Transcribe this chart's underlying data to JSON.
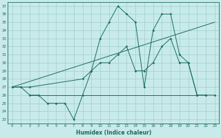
{
  "xlabel": "Humidex (Indice chaleur)",
  "bg_color": "#c8eaea",
  "grid_color": "#9fcece",
  "line_color": "#1a6b5a",
  "xlim": [
    -0.5,
    23.5
  ],
  "ylim": [
    22.5,
    37.5
  ],
  "xticks": [
    0,
    1,
    2,
    3,
    4,
    5,
    6,
    7,
    8,
    9,
    10,
    11,
    12,
    13,
    14,
    15,
    16,
    17,
    18,
    19,
    20,
    21,
    22,
    23
  ],
  "yticks": [
    23,
    24,
    25,
    26,
    27,
    28,
    29,
    30,
    31,
    32,
    33,
    34,
    35,
    36,
    37
  ],
  "line_zigzag": {
    "x": [
      0,
      1,
      2,
      3,
      4,
      5,
      6,
      7,
      8,
      9,
      10,
      11,
      12,
      13,
      14,
      15,
      16,
      17,
      18,
      19,
      20,
      21,
      22
    ],
    "y": [
      27,
      27,
      26,
      26,
      25,
      25,
      25,
      23,
      26,
      29,
      33,
      35,
      37,
      36,
      35,
      27,
      34,
      36,
      36,
      31,
      30,
      26,
      26
    ]
  },
  "line_mid": {
    "x": [
      0,
      2,
      8,
      9,
      10,
      11,
      12,
      13,
      14,
      15,
      16,
      17,
      18,
      19,
      20,
      21,
      22,
      23
    ],
    "y": [
      27,
      27,
      28,
      29,
      30,
      30,
      31,
      32,
      29,
      29,
      30,
      32,
      33,
      30,
      30,
      26,
      26,
      26
    ]
  },
  "line_flat": {
    "x": [
      2,
      21
    ],
    "y": [
      26,
      26
    ]
  },
  "line_diag": {
    "x": [
      0,
      23
    ],
    "y": [
      27,
      35
    ]
  }
}
